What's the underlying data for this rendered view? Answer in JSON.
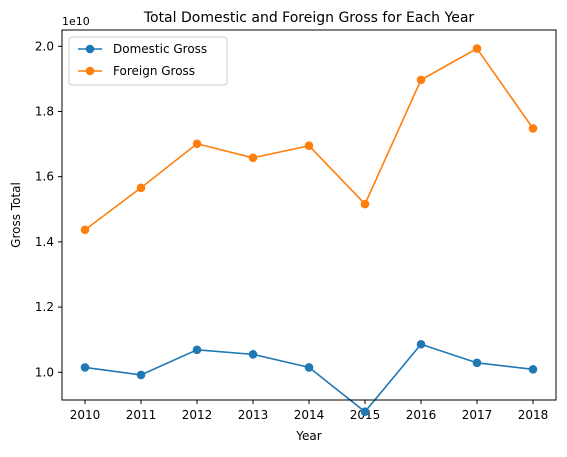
{
  "chart_data": {
    "type": "line",
    "title": "Total Domestic and Foreign Gross for Each Year",
    "xlabel": "Year",
    "ylabel": "Gross Total",
    "y_offset_label": "1e10",
    "x": [
      "2010",
      "2011",
      "2012",
      "2013",
      "2014",
      "2015",
      "2016",
      "2017",
      "2018"
    ],
    "yticks": [
      "1.0",
      "1.2",
      "1.4",
      "1.6",
      "1.8",
      "2.0"
    ],
    "ylim": [
      0.915,
      2.05
    ],
    "series": [
      {
        "name": "Domestic Gross",
        "color": "#1f77b4",
        "values": [
          1.015,
          0.992,
          1.069,
          1.055,
          1.015,
          0.879,
          1.086,
          1.029,
          1.009
        ]
      },
      {
        "name": "Foreign Gross",
        "color": "#ff7f0e",
        "values": [
          1.437,
          1.566,
          1.701,
          1.658,
          1.695,
          1.516,
          1.897,
          1.993,
          1.748
        ]
      }
    ],
    "legend_position": "top-left",
    "grid": false
  }
}
